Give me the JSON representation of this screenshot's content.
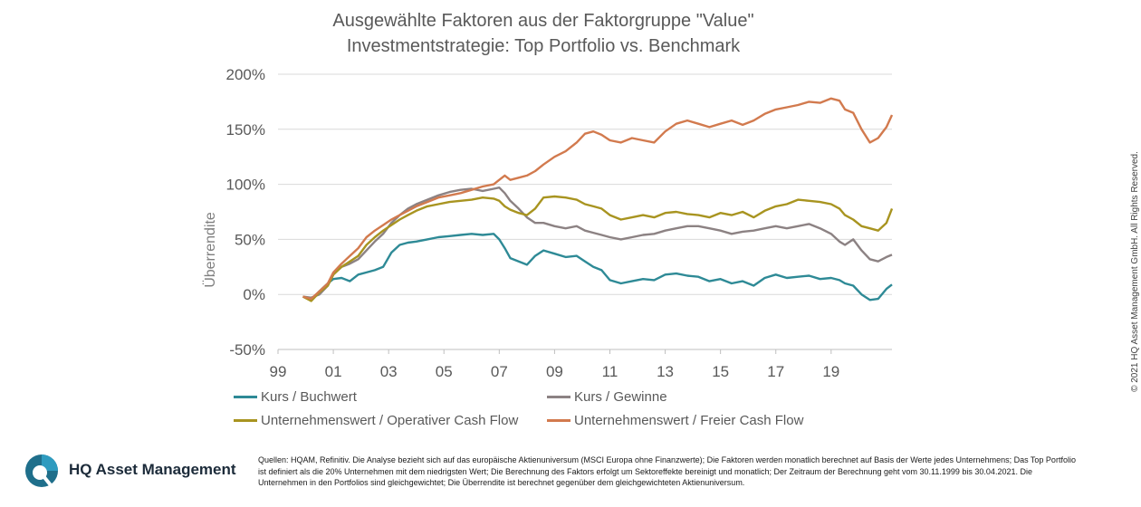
{
  "title_line1": "Ausgewählte Faktoren aus der Faktorgruppe \"Value\"",
  "title_line2": "Investmentstrategie: Top Portfolio vs. Benchmark",
  "copyright": "© 2021 HQ Asset Management GmbH. All Rights Reserved.",
  "brand": "HQ Asset Management",
  "sources": "Quellen: HQAM, Refinitiv. Die Analyse bezieht sich auf das europäische Aktienuniversum (MSCI Europa ohne Finanzwerte); Die Faktoren werden monatlich berechnet auf Basis der Werte jedes Unternehmens; Das Top Portfolio ist definiert als die 20% Unternehmen mit dem niedrigsten Wert; Die Berechnung des Faktors erfolgt um Sektoreffekte bereinigt und monatlich; Der Zeitraum der Berechnung geht vom 30.11.1999 bis 30.04.2021. Die Unternehmen in den Portfolios sind gleichgewichtet; Die Überrendite ist berechnet gegenüber dem gleichgewichteten Aktienuniversum.",
  "colors": {
    "teal": "#2e8a96",
    "gray": "#8c8283",
    "olive": "#a89420",
    "orange": "#d27a4e",
    "grid": "#d9d9d9"
  },
  "chart_data": {
    "type": "line",
    "title": "Ausgewählte Faktoren aus der Faktorgruppe \"Value\" Investmentstrategie: Top Portfolio vs. Benchmark",
    "ylabel": "Überrendite",
    "xlabel": "",
    "ylim": [
      -50,
      200
    ],
    "xlim": [
      1999,
      2021.2
    ],
    "y_ticks": [
      -50,
      0,
      50,
      100,
      150,
      200
    ],
    "y_tick_labels": [
      "-50%",
      "0%",
      "50%",
      "100%",
      "150%",
      "200%"
    ],
    "x_ticks": [
      1999,
      2001,
      2003,
      2005,
      2007,
      2009,
      2011,
      2013,
      2015,
      2017,
      2019
    ],
    "x_tick_labels": [
      "99",
      "01",
      "03",
      "05",
      "07",
      "09",
      "11",
      "13",
      "15",
      "17",
      "19"
    ],
    "grid": "horizontal",
    "legend_position": "bottom",
    "series": [
      {
        "name": "Kurs / Buchwert",
        "color": "#2e8a96",
        "x": [
          1999.9,
          2000.2,
          2000.5,
          2000.8,
          2001.0,
          2001.3,
          2001.6,
          2001.9,
          2002.2,
          2002.5,
          2002.8,
          2003.1,
          2003.4,
          2003.7,
          2004.0,
          2004.4,
          2004.8,
          2005.2,
          2005.6,
          2006.0,
          2006.4,
          2006.8,
          2007.0,
          2007.2,
          2007.4,
          2007.7,
          2008.0,
          2008.3,
          2008.6,
          2009.0,
          2009.4,
          2009.8,
          2010.1,
          2010.4,
          2010.7,
          2011.0,
          2011.4,
          2011.8,
          2012.2,
          2012.6,
          2013.0,
          2013.4,
          2013.8,
          2014.2,
          2014.6,
          2015.0,
          2015.4,
          2015.8,
          2016.2,
          2016.6,
          2017.0,
          2017.4,
          2017.8,
          2018.2,
          2018.6,
          2019.0,
          2019.3,
          2019.5,
          2019.8,
          2020.1,
          2020.4,
          2020.7,
          2021.0,
          2021.2
        ],
        "y": [
          -2,
          -5,
          3,
          10,
          14,
          15,
          12,
          18,
          20,
          22,
          25,
          38,
          45,
          47,
          48,
          50,
          52,
          53,
          54,
          55,
          54,
          55,
          50,
          42,
          33,
          30,
          27,
          35,
          40,
          37,
          34,
          35,
          30,
          25,
          22,
          13,
          10,
          12,
          14,
          13,
          18,
          19,
          17,
          16,
          12,
          14,
          10,
          12,
          8,
          15,
          18,
          15,
          16,
          17,
          14,
          15,
          13,
          10,
          8,
          0,
          -5,
          -4,
          5,
          9
        ]
      },
      {
        "name": "Kurs / Gewinne",
        "color": "#8c8283",
        "x": [
          1999.9,
          2000.2,
          2000.5,
          2000.8,
          2001.0,
          2001.3,
          2001.6,
          2001.9,
          2002.2,
          2002.5,
          2002.8,
          2003.1,
          2003.4,
          2003.7,
          2004.0,
          2004.4,
          2004.8,
          2005.2,
          2005.6,
          2006.0,
          2006.4,
          2006.8,
          2007.0,
          2007.2,
          2007.4,
          2007.7,
          2008.0,
          2008.3,
          2008.6,
          2009.0,
          2009.4,
          2009.8,
          2010.1,
          2010.4,
          2010.7,
          2011.0,
          2011.4,
          2011.8,
          2012.2,
          2012.6,
          2013.0,
          2013.4,
          2013.8,
          2014.2,
          2014.6,
          2015.0,
          2015.4,
          2015.8,
          2016.2,
          2016.6,
          2017.0,
          2017.4,
          2017.8,
          2018.2,
          2018.6,
          2019.0,
          2019.3,
          2019.5,
          2019.8,
          2020.1,
          2020.4,
          2020.7,
          2021.0,
          2021.2
        ],
        "y": [
          -2,
          -3,
          0,
          8,
          18,
          25,
          28,
          32,
          40,
          48,
          55,
          65,
          72,
          78,
          82,
          86,
          90,
          93,
          95,
          96,
          94,
          96,
          97,
          92,
          85,
          78,
          70,
          65,
          65,
          62,
          60,
          62,
          58,
          56,
          54,
          52,
          50,
          52,
          54,
          55,
          58,
          60,
          62,
          62,
          60,
          58,
          55,
          57,
          58,
          60,
          62,
          60,
          62,
          64,
          60,
          55,
          48,
          45,
          50,
          40,
          32,
          30,
          34,
          36
        ]
      },
      {
        "name": "Unternehmenswert / Operativer Cash Flow",
        "color": "#a89420",
        "x": [
          1999.9,
          2000.2,
          2000.5,
          2000.8,
          2001.0,
          2001.3,
          2001.6,
          2001.9,
          2002.2,
          2002.5,
          2002.8,
          2003.1,
          2003.4,
          2003.7,
          2004.0,
          2004.4,
          2004.8,
          2005.2,
          2005.6,
          2006.0,
          2006.4,
          2006.8,
          2007.0,
          2007.2,
          2007.4,
          2007.7,
          2008.0,
          2008.3,
          2008.6,
          2009.0,
          2009.4,
          2009.8,
          2010.1,
          2010.4,
          2010.7,
          2011.0,
          2011.4,
          2011.8,
          2012.2,
          2012.6,
          2013.0,
          2013.4,
          2013.8,
          2014.2,
          2014.6,
          2015.0,
          2015.4,
          2015.8,
          2016.2,
          2016.6,
          2017.0,
          2017.4,
          2017.8,
          2018.2,
          2018.6,
          2019.0,
          2019.3,
          2019.5,
          2019.8,
          2020.1,
          2020.4,
          2020.7,
          2021.0,
          2021.2
        ],
        "y": [
          -2,
          -6,
          2,
          8,
          18,
          25,
          30,
          35,
          45,
          52,
          58,
          63,
          68,
          72,
          76,
          80,
          82,
          84,
          85,
          86,
          88,
          87,
          85,
          80,
          77,
          74,
          72,
          78,
          88,
          89,
          88,
          86,
          82,
          80,
          78,
          72,
          68,
          70,
          72,
          70,
          74,
          75,
          73,
          72,
          70,
          74,
          72,
          75,
          70,
          76,
          80,
          82,
          86,
          85,
          84,
          82,
          78,
          72,
          68,
          62,
          60,
          58,
          65,
          78
        ]
      },
      {
        "name": "Unternehmenswert / Freier Cash Flow",
        "color": "#d27a4e",
        "x": [
          1999.9,
          2000.2,
          2000.5,
          2000.8,
          2001.0,
          2001.3,
          2001.6,
          2001.9,
          2002.2,
          2002.5,
          2002.8,
          2003.1,
          2003.4,
          2003.7,
          2004.0,
          2004.4,
          2004.8,
          2005.2,
          2005.6,
          2006.0,
          2006.4,
          2006.8,
          2007.0,
          2007.2,
          2007.4,
          2007.7,
          2008.0,
          2008.3,
          2008.6,
          2009.0,
          2009.4,
          2009.8,
          2010.1,
          2010.4,
          2010.7,
          2011.0,
          2011.4,
          2011.8,
          2012.2,
          2012.6,
          2013.0,
          2013.4,
          2013.8,
          2014.2,
          2014.6,
          2015.0,
          2015.4,
          2015.8,
          2016.2,
          2016.6,
          2017.0,
          2017.4,
          2017.8,
          2018.2,
          2018.6,
          2019.0,
          2019.3,
          2019.5,
          2019.8,
          2020.1,
          2020.4,
          2020.7,
          2021.0,
          2021.2
        ],
        "y": [
          -2,
          -4,
          3,
          10,
          20,
          28,
          35,
          42,
          52,
          58,
          63,
          68,
          72,
          76,
          80,
          84,
          88,
          90,
          92,
          95,
          98,
          100,
          104,
          108,
          104,
          106,
          108,
          112,
          118,
          125,
          130,
          138,
          146,
          148,
          145,
          140,
          138,
          142,
          140,
          138,
          148,
          155,
          158,
          155,
          152,
          155,
          158,
          154,
          158,
          164,
          168,
          170,
          172,
          175,
          174,
          178,
          176,
          168,
          165,
          150,
          138,
          142,
          152,
          163
        ]
      }
    ]
  },
  "legend": [
    {
      "name": "Kurs / Buchwert",
      "color": "#2e8a96"
    },
    {
      "name": "Kurs / Gewinne",
      "color": "#8c8283"
    },
    {
      "name": "Unternehmenswert / Operativer Cash Flow",
      "color": "#a89420"
    },
    {
      "name": "Unternehmenswert / Freier Cash Flow",
      "color": "#d27a4e"
    }
  ]
}
